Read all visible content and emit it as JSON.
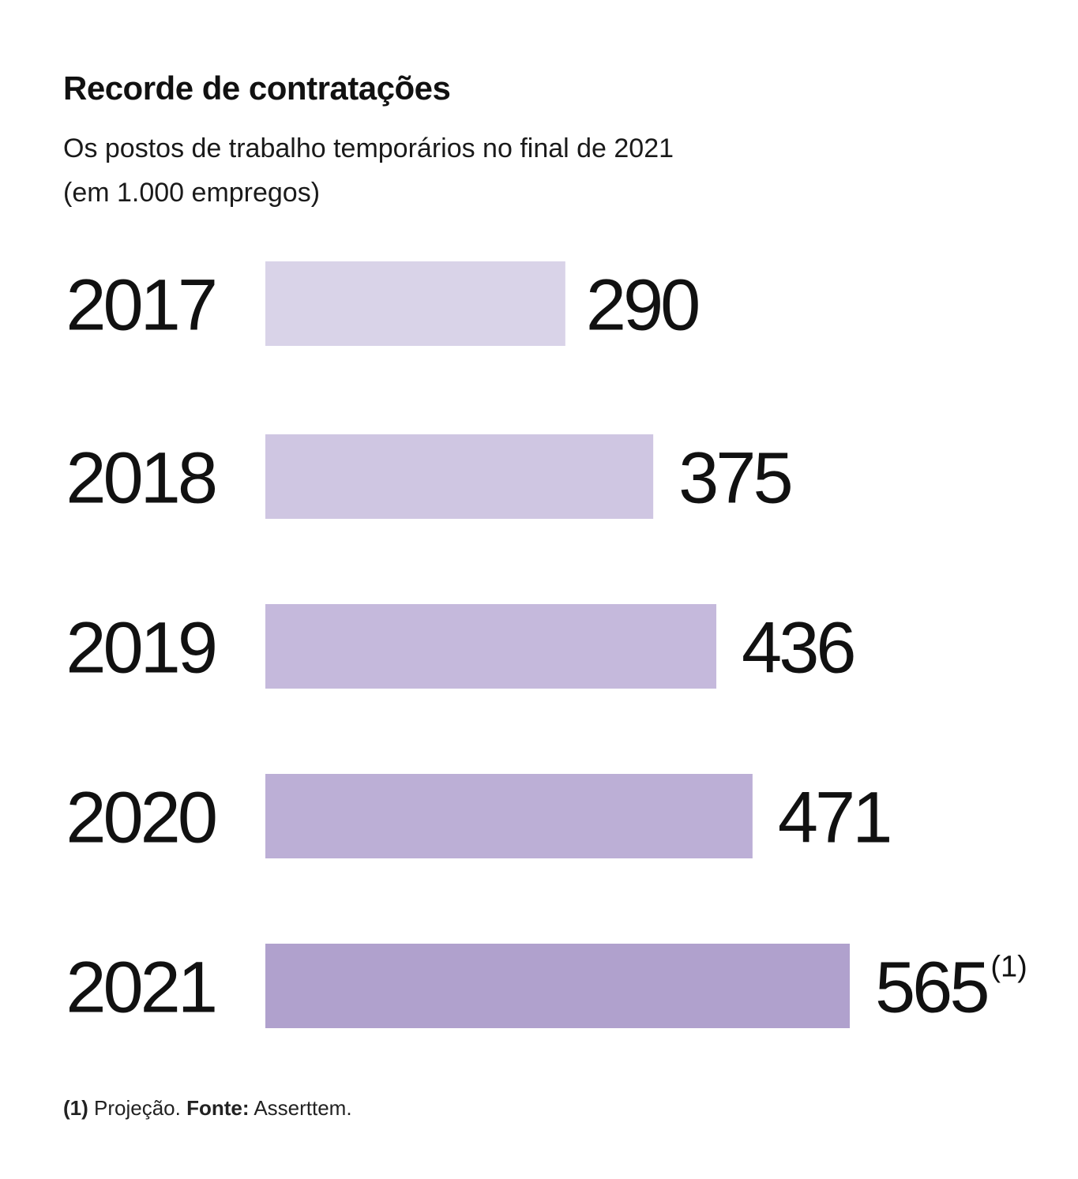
{
  "chart_data": {
    "type": "bar",
    "orientation": "horizontal",
    "title": "Recorde de contratações",
    "subtitle_line1": "Os postos de trabalho temporários no final de 2021",
    "subtitle_line2": "(em 1.000 empregos)",
    "categories": [
      "2017",
      "2018",
      "2019",
      "2020",
      "2021"
    ],
    "values": [
      290,
      375,
      436,
      471,
      565
    ],
    "value_labels": [
      "290",
      "375",
      "436",
      "471",
      "565"
    ],
    "value_notes": [
      "",
      "",
      "",
      "",
      "(1)"
    ],
    "colors": [
      "#d9d3e8",
      "#cfc6e2",
      "#c5b9dc",
      "#bcafd6",
      "#b0a1cd"
    ],
    "xlabel": "",
    "ylabel": "",
    "xlim": [
      0,
      565
    ],
    "grid": false,
    "legend": "none"
  },
  "footnote": {
    "note_marker": "(1)",
    "note_text": "Projeção.",
    "source_label": "Fonte:",
    "source_text": "Asserttem."
  }
}
